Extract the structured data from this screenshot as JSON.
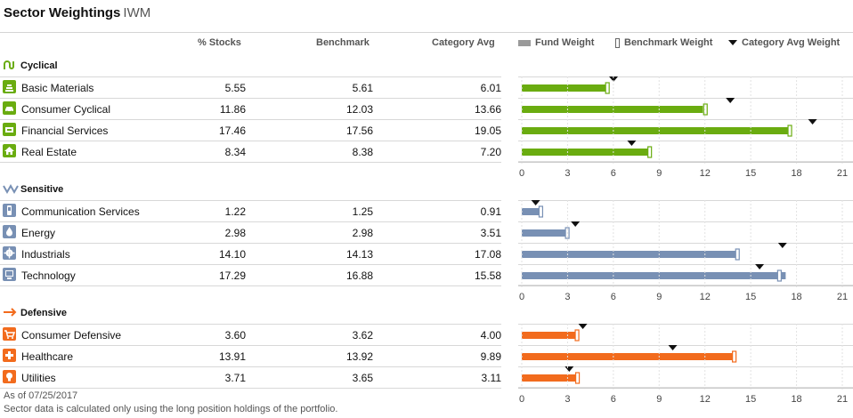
{
  "title": "Sector Weightings",
  "ticker": "IWM",
  "columns": {
    "stocks": "% Stocks",
    "benchmark": "Benchmark",
    "category": "Category Avg"
  },
  "legend": {
    "fund": "Fund Weight",
    "benchmark": "Benchmark Weight",
    "category": "Category Avg Weight"
  },
  "axis_ticks": [
    "0",
    "3",
    "6",
    "9",
    "12",
    "15",
    "18",
    "21"
  ],
  "colors": {
    "cyclical": "#6aac10",
    "sensitive": "#7890b4",
    "defensive": "#f26b1d"
  },
  "groups": [
    {
      "label": "Cyclical",
      "icon": "cyclical-icon",
      "color": "#6aac10",
      "rows": [
        {
          "name": "Basic Materials",
          "icon": "basic-materials-icon",
          "stocks": "5.55",
          "benchmark": "5.61",
          "category": "6.01"
        },
        {
          "name": "Consumer Cyclical",
          "icon": "consumer-cyclical-icon",
          "stocks": "11.86",
          "benchmark": "12.03",
          "category": "13.66"
        },
        {
          "name": "Financial Services",
          "icon": "financial-services-icon",
          "stocks": "17.46",
          "benchmark": "17.56",
          "category": "19.05"
        },
        {
          "name": "Real Estate",
          "icon": "real-estate-icon",
          "stocks": "8.34",
          "benchmark": "8.38",
          "category": "7.20"
        }
      ]
    },
    {
      "label": "Sensitive",
      "icon": "sensitive-icon",
      "color": "#7890b4",
      "rows": [
        {
          "name": "Communication Services",
          "icon": "communication-services-icon",
          "stocks": "1.22",
          "benchmark": "1.25",
          "category": "0.91"
        },
        {
          "name": "Energy",
          "icon": "energy-icon",
          "stocks": "2.98",
          "benchmark": "2.98",
          "category": "3.51"
        },
        {
          "name": "Industrials",
          "icon": "industrials-icon",
          "stocks": "14.10",
          "benchmark": "14.13",
          "category": "17.08"
        },
        {
          "name": "Technology",
          "icon": "technology-icon",
          "stocks": "17.29",
          "benchmark": "16.88",
          "category": "15.58"
        }
      ]
    },
    {
      "label": "Defensive",
      "icon": "defensive-icon",
      "color": "#f26b1d",
      "rows": [
        {
          "name": "Consumer Defensive",
          "icon": "consumer-defensive-icon",
          "stocks": "3.60",
          "benchmark": "3.62",
          "category": "4.00"
        },
        {
          "name": "Healthcare",
          "icon": "healthcare-icon",
          "stocks": "13.91",
          "benchmark": "13.92",
          "category": "9.89"
        },
        {
          "name": "Utilities",
          "icon": "utilities-icon",
          "stocks": "3.71",
          "benchmark": "3.65",
          "category": "3.11"
        }
      ]
    }
  ],
  "footnotes": [
    "As of 07/25/2017",
    "Sector data is calculated only using the long position holdings of the portfolio."
  ]
}
